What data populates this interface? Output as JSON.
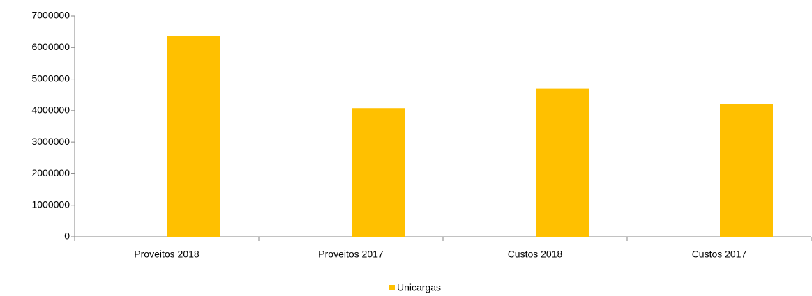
{
  "chart_data": {
    "type": "bar",
    "categories": [
      "Proveitos 2018",
      "Proveitos 2017",
      "Custos 2018",
      "Custos 2017"
    ],
    "series": [
      {
        "name": "Unicargas",
        "color": "#ffc000",
        "values": [
          6380000,
          4080000,
          4690000,
          4200000
        ]
      }
    ],
    "ylim": [
      0,
      7000000
    ],
    "yticks": [
      0,
      1000000,
      2000000,
      3000000,
      4000000,
      5000000,
      6000000,
      7000000
    ],
    "grid": false,
    "legend": "bottom"
  }
}
